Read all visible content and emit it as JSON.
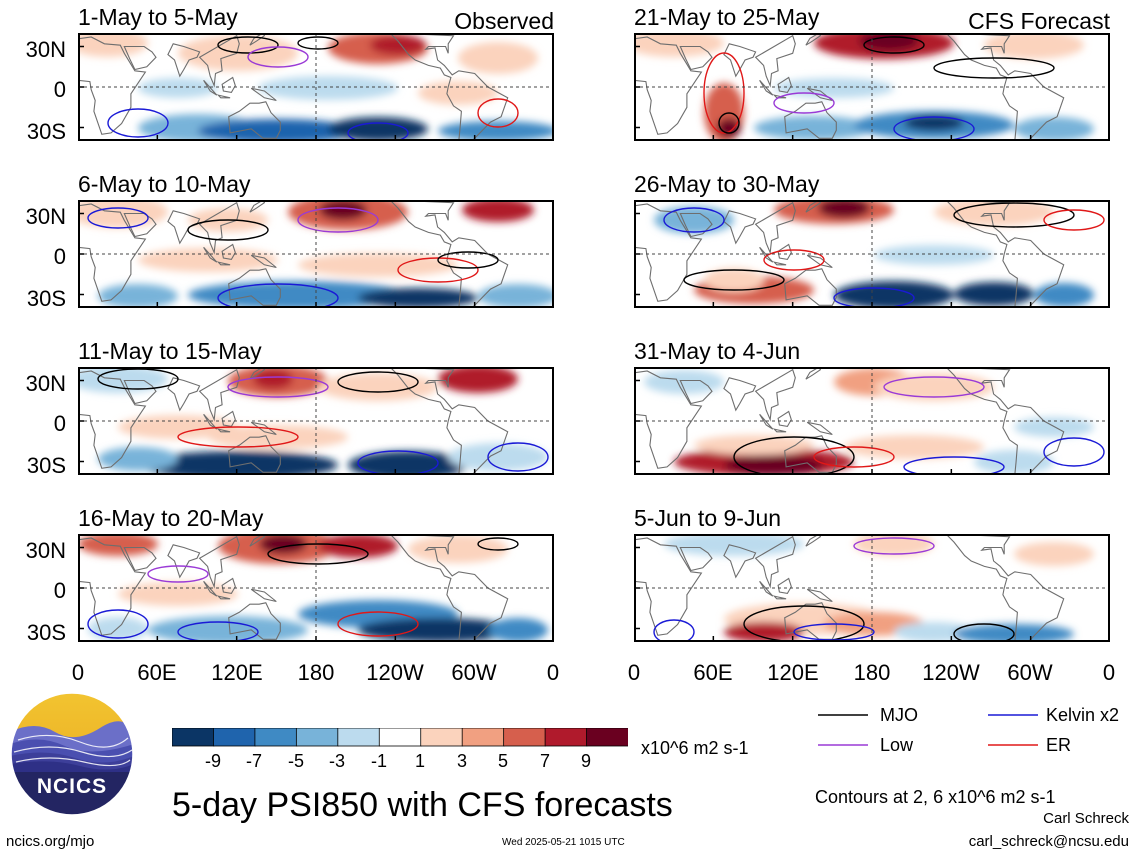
{
  "header": {
    "observed_label": "Observed",
    "forecast_label": "CFS Forecast"
  },
  "panels": [
    {
      "title": "1-May to 5-May",
      "column": "observed"
    },
    {
      "title": "6-May to 10-May",
      "column": "observed"
    },
    {
      "title": "11-May to 15-May",
      "column": "observed"
    },
    {
      "title": "16-May to 20-May",
      "column": "observed"
    },
    {
      "title": "21-May to 25-May",
      "column": "forecast"
    },
    {
      "title": "26-May to 30-May",
      "column": "forecast"
    },
    {
      "title": "31-May to 4-Jun",
      "column": "forecast"
    },
    {
      "title": "5-Jun to 9-Jun",
      "column": "forecast"
    }
  ],
  "axes": {
    "y_labels": [
      "30N",
      "0",
      "30S"
    ],
    "x_labels": [
      "0",
      "60E",
      "120E",
      "180",
      "120W",
      "60W",
      "0"
    ]
  },
  "colorbar": {
    "tick_labels": [
      "-9",
      "-7",
      "-5",
      "-3",
      "-1",
      "1",
      "3",
      "5",
      "7",
      "9"
    ],
    "colors": [
      "#0b3565",
      "#1f64ad",
      "#3f8ac4",
      "#78b3d9",
      "#bcdbee",
      "#ffffff",
      "#fbd3bd",
      "#f1a081",
      "#d65f4d",
      "#b01a2c",
      "#6a0020"
    ],
    "units": "x10^6 m2 s-1"
  },
  "legend": {
    "items": [
      {
        "label": "MJO",
        "color": "#000000"
      },
      {
        "label": "Kelvin x2",
        "color": "#1a1ad6"
      },
      {
        "label": "Low",
        "color": "#9a3ad6"
      },
      {
        "label": "ER",
        "color": "#e01818"
      }
    ],
    "contour_note": "Contours at 2, 6 x10^6 m2 s-1"
  },
  "footer": {
    "title": "5-day PSI850 with CFS forecasts",
    "logo_text": "NCICS",
    "site": "ncics.org/mjo",
    "timestamp": "Wed 2025-05-21 1015 UTC",
    "author": "Carl Schreck",
    "email": "carl_schreck@ncsu.edu"
  },
  "map_features": {
    "fill_colors": {
      "blue_dark": "#0b3565",
      "blue_mid": "#3f8ac4",
      "blue_light": "#bcdbee",
      "red_light": "#fbd3bd",
      "red_mid": "#d65f4d",
      "red_dark": "#6a0020"
    }
  }
}
